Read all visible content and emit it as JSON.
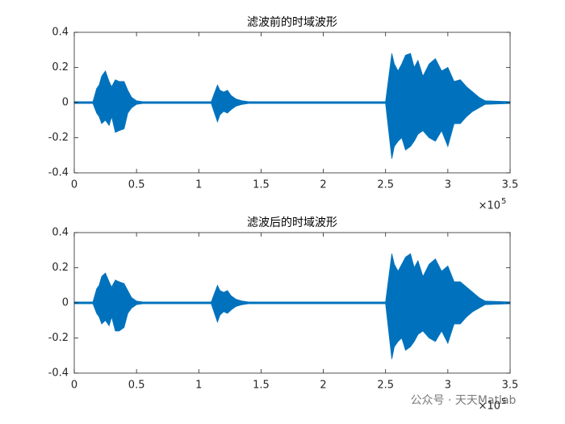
{
  "chart_data": [
    {
      "type": "band",
      "title": "滤波前的时域波形",
      "color": "#0072bd",
      "x_multiplier": "×10",
      "x_multiplier_exp": "5",
      "xlim": [
        0,
        3.5
      ],
      "ylim": [
        -0.4,
        0.4
      ],
      "xticks": [
        0,
        0.5,
        1,
        1.5,
        2,
        2.5,
        3,
        3.5
      ],
      "yticks": [
        -0.4,
        -0.2,
        0,
        0.2,
        0.4
      ],
      "x": [
        0,
        0.15,
        0.18,
        0.2,
        0.22,
        0.25,
        0.28,
        0.3,
        0.33,
        0.36,
        0.4,
        0.43,
        0.46,
        0.5,
        0.55,
        1.1,
        1.15,
        1.17,
        1.2,
        1.23,
        1.26,
        1.3,
        1.35,
        1.4,
        1.45,
        2.5,
        2.55,
        2.57,
        2.6,
        2.63,
        2.66,
        2.7,
        2.73,
        2.76,
        2.8,
        2.85,
        2.9,
        2.95,
        3.0,
        3.05,
        3.1,
        3.15,
        3.2,
        3.25,
        3.3,
        3.5
      ],
      "upper": [
        0.005,
        0.005,
        0.08,
        0.1,
        0.15,
        0.18,
        0.12,
        0.09,
        0.13,
        0.12,
        0.12,
        0.07,
        0.03,
        0.01,
        0.005,
        0.005,
        0.1,
        0.07,
        0.06,
        0.07,
        0.04,
        0.02,
        0.01,
        0.005,
        0.005,
        0.005,
        0.28,
        0.22,
        0.18,
        0.22,
        0.27,
        0.28,
        0.2,
        0.24,
        0.15,
        0.22,
        0.25,
        0.18,
        0.2,
        0.12,
        0.13,
        0.09,
        0.06,
        0.03,
        0.01,
        0.005
      ],
      "lower": [
        -0.005,
        -0.005,
        -0.06,
        -0.08,
        -0.12,
        -0.1,
        -0.13,
        -0.08,
        -0.17,
        -0.16,
        -0.15,
        -0.06,
        -0.03,
        -0.01,
        -0.005,
        -0.005,
        -0.11,
        -0.07,
        -0.05,
        -0.06,
        -0.04,
        -0.02,
        -0.01,
        -0.005,
        -0.005,
        -0.005,
        -0.32,
        -0.25,
        -0.22,
        -0.2,
        -0.27,
        -0.25,
        -0.22,
        -0.18,
        -0.16,
        -0.2,
        -0.22,
        -0.16,
        -0.25,
        -0.12,
        -0.12,
        -0.08,
        -0.05,
        -0.03,
        -0.01,
        -0.005
      ]
    },
    {
      "type": "band",
      "title": "滤波后的时域波形",
      "color": "#0072bd",
      "x_multiplier": "×10",
      "x_multiplier_exp": "5",
      "xlim": [
        0,
        3.5
      ],
      "ylim": [
        -0.4,
        0.4
      ],
      "xticks": [
        0,
        0.5,
        1,
        1.5,
        2,
        2.5,
        3,
        3.5
      ],
      "yticks": [
        -0.4,
        -0.2,
        0,
        0.2,
        0.4
      ],
      "x": [
        0,
        0.15,
        0.18,
        0.2,
        0.22,
        0.25,
        0.28,
        0.3,
        0.33,
        0.36,
        0.4,
        0.43,
        0.46,
        0.5,
        0.55,
        1.1,
        1.15,
        1.17,
        1.2,
        1.23,
        1.26,
        1.3,
        1.35,
        1.4,
        1.45,
        2.5,
        2.55,
        2.57,
        2.6,
        2.63,
        2.66,
        2.7,
        2.73,
        2.76,
        2.8,
        2.85,
        2.9,
        2.95,
        3.0,
        3.05,
        3.1,
        3.15,
        3.2,
        3.25,
        3.3,
        3.5
      ],
      "upper": [
        0.005,
        0.005,
        0.08,
        0.1,
        0.15,
        0.17,
        0.12,
        0.09,
        0.13,
        0.12,
        0.11,
        0.07,
        0.03,
        0.01,
        0.005,
        0.005,
        0.1,
        0.07,
        0.06,
        0.07,
        0.04,
        0.02,
        0.01,
        0.005,
        0.005,
        0.005,
        0.28,
        0.22,
        0.18,
        0.22,
        0.26,
        0.28,
        0.2,
        0.24,
        0.15,
        0.22,
        0.25,
        0.18,
        0.21,
        0.12,
        0.12,
        0.09,
        0.06,
        0.03,
        0.01,
        0.005
      ],
      "lower": [
        -0.005,
        -0.005,
        -0.06,
        -0.08,
        -0.12,
        -0.1,
        -0.13,
        -0.08,
        -0.16,
        -0.16,
        -0.14,
        -0.06,
        -0.03,
        -0.01,
        -0.005,
        -0.005,
        -0.11,
        -0.07,
        -0.05,
        -0.06,
        -0.04,
        -0.02,
        -0.01,
        -0.005,
        -0.005,
        -0.005,
        -0.32,
        -0.25,
        -0.22,
        -0.2,
        -0.27,
        -0.25,
        -0.22,
        -0.18,
        -0.16,
        -0.2,
        -0.22,
        -0.16,
        -0.23,
        -0.12,
        -0.12,
        -0.08,
        -0.05,
        -0.03,
        -0.01,
        -0.005
      ]
    }
  ],
  "watermark": "公众号 · 天天Matlab"
}
